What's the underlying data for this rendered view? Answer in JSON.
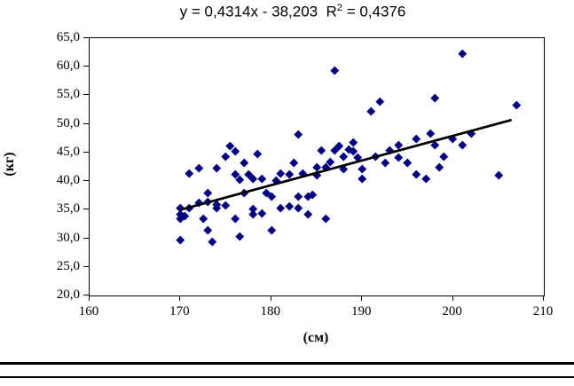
{
  "title": {
    "prefix": "y = 0,4314x - 38,203  R",
    "sup": "2",
    "suffix": " = 0,4376"
  },
  "chart_data": {
    "type": "scatter",
    "title": "y = 0,4314x - 38,203  R2 = 0,4376",
    "xlabel": "(см)",
    "ylabel": "(кг)",
    "xlim": [
      160,
      210
    ],
    "ylim": [
      20,
      65
    ],
    "grid": false,
    "legend": "none",
    "marker_color": "#000080",
    "trendline": {
      "slope": 0.4314,
      "intercept": -38.203,
      "r_squared": 0.4376,
      "x_start": 170,
      "x_end": 206.5,
      "color": "#000000"
    },
    "x_ticks": [
      {
        "v": 160,
        "label": "160"
      },
      {
        "v": 170,
        "label": "170"
      },
      {
        "v": 180,
        "label": "180"
      },
      {
        "v": 190,
        "label": "190"
      },
      {
        "v": 200,
        "label": "200"
      },
      {
        "v": 210,
        "label": "210"
      }
    ],
    "y_ticks": [
      {
        "v": 65,
        "label": "65,0"
      },
      {
        "v": 60,
        "label": "60,0"
      },
      {
        "v": 55,
        "label": "55,0"
      },
      {
        "v": 50,
        "label": "50,0"
      },
      {
        "v": 45,
        "label": "45,0"
      },
      {
        "v": 40,
        "label": "40,0"
      },
      {
        "v": 35,
        "label": "35,0"
      },
      {
        "v": 30,
        "label": "30,0"
      },
      {
        "v": 25,
        "label": "25,0"
      },
      {
        "v": 20,
        "label": "20,0"
      }
    ],
    "points": [
      [
        170,
        29.8
      ],
      [
        170,
        33.4
      ],
      [
        170,
        34.3
      ],
      [
        170,
        35.4
      ],
      [
        170.5,
        34.0
      ],
      [
        171,
        41.4
      ],
      [
        171,
        35.3
      ],
      [
        172,
        42.3
      ],
      [
        172,
        36.2
      ],
      [
        172.5,
        33.4
      ],
      [
        173,
        38.0
      ],
      [
        173,
        36.4
      ],
      [
        173,
        31.4
      ],
      [
        173.5,
        29.4
      ],
      [
        174,
        36.0
      ],
      [
        174,
        35.4
      ],
      [
        174,
        42.3
      ],
      [
        175,
        44.4
      ],
      [
        175,
        35.8
      ],
      [
        175.5,
        46.2
      ],
      [
        176,
        45.2
      ],
      [
        176,
        41.2
      ],
      [
        176,
        33.4
      ],
      [
        176.5,
        30.4
      ],
      [
        176.5,
        40.3
      ],
      [
        177,
        38.0
      ],
      [
        177,
        43.2
      ],
      [
        177.5,
        41.2
      ],
      [
        178,
        40.4
      ],
      [
        178,
        35.2
      ],
      [
        178,
        34.2
      ],
      [
        178.5,
        44.8
      ],
      [
        179,
        40.4
      ],
      [
        179,
        34.4
      ],
      [
        179.5,
        38.0
      ],
      [
        180,
        31.4
      ],
      [
        180,
        37.4
      ],
      [
        180.5,
        40.2
      ],
      [
        181,
        41.4
      ],
      [
        181,
        35.4
      ],
      [
        182,
        41.2
      ],
      [
        182,
        35.6
      ],
      [
        182.5,
        43.2
      ],
      [
        183,
        48.2
      ],
      [
        183,
        37.4
      ],
      [
        183,
        35.4
      ],
      [
        183.5,
        41.3
      ],
      [
        184,
        37.4
      ],
      [
        184,
        34.2
      ],
      [
        184.5,
        37.6
      ],
      [
        185,
        42.4
      ],
      [
        185,
        41.0
      ],
      [
        185.5,
        45.4
      ],
      [
        186,
        33.4
      ],
      [
        186,
        42.4
      ],
      [
        186.5,
        43.4
      ],
      [
        187,
        59.4
      ],
      [
        187,
        45.4
      ],
      [
        187.5,
        46.2
      ],
      [
        188,
        44.4
      ],
      [
        188,
        42.2
      ],
      [
        188.5,
        45.6
      ],
      [
        189,
        46.8
      ],
      [
        189,
        45.3
      ],
      [
        189.5,
        44.2
      ],
      [
        190,
        40.4
      ],
      [
        190,
        42.2
      ],
      [
        191,
        52.2
      ],
      [
        191.5,
        44.4
      ],
      [
        192,
        54.0
      ],
      [
        192.5,
        43.2
      ],
      [
        193,
        45.4
      ],
      [
        194,
        46.4
      ],
      [
        194,
        44.2
      ],
      [
        195,
        43.2
      ],
      [
        196,
        41.2
      ],
      [
        196,
        47.4
      ],
      [
        197,
        40.4
      ],
      [
        197.5,
        48.4
      ],
      [
        198,
        54.6
      ],
      [
        198,
        46.4
      ],
      [
        198.5,
        42.4
      ],
      [
        199,
        44.4
      ],
      [
        200,
        47.4
      ],
      [
        201,
        62.4
      ],
      [
        201,
        46.4
      ],
      [
        202,
        48.4
      ],
      [
        205,
        41.0
      ],
      [
        207,
        53.4
      ]
    ]
  },
  "axis_titles": {
    "y": "(кг)",
    "x": "(см)"
  }
}
